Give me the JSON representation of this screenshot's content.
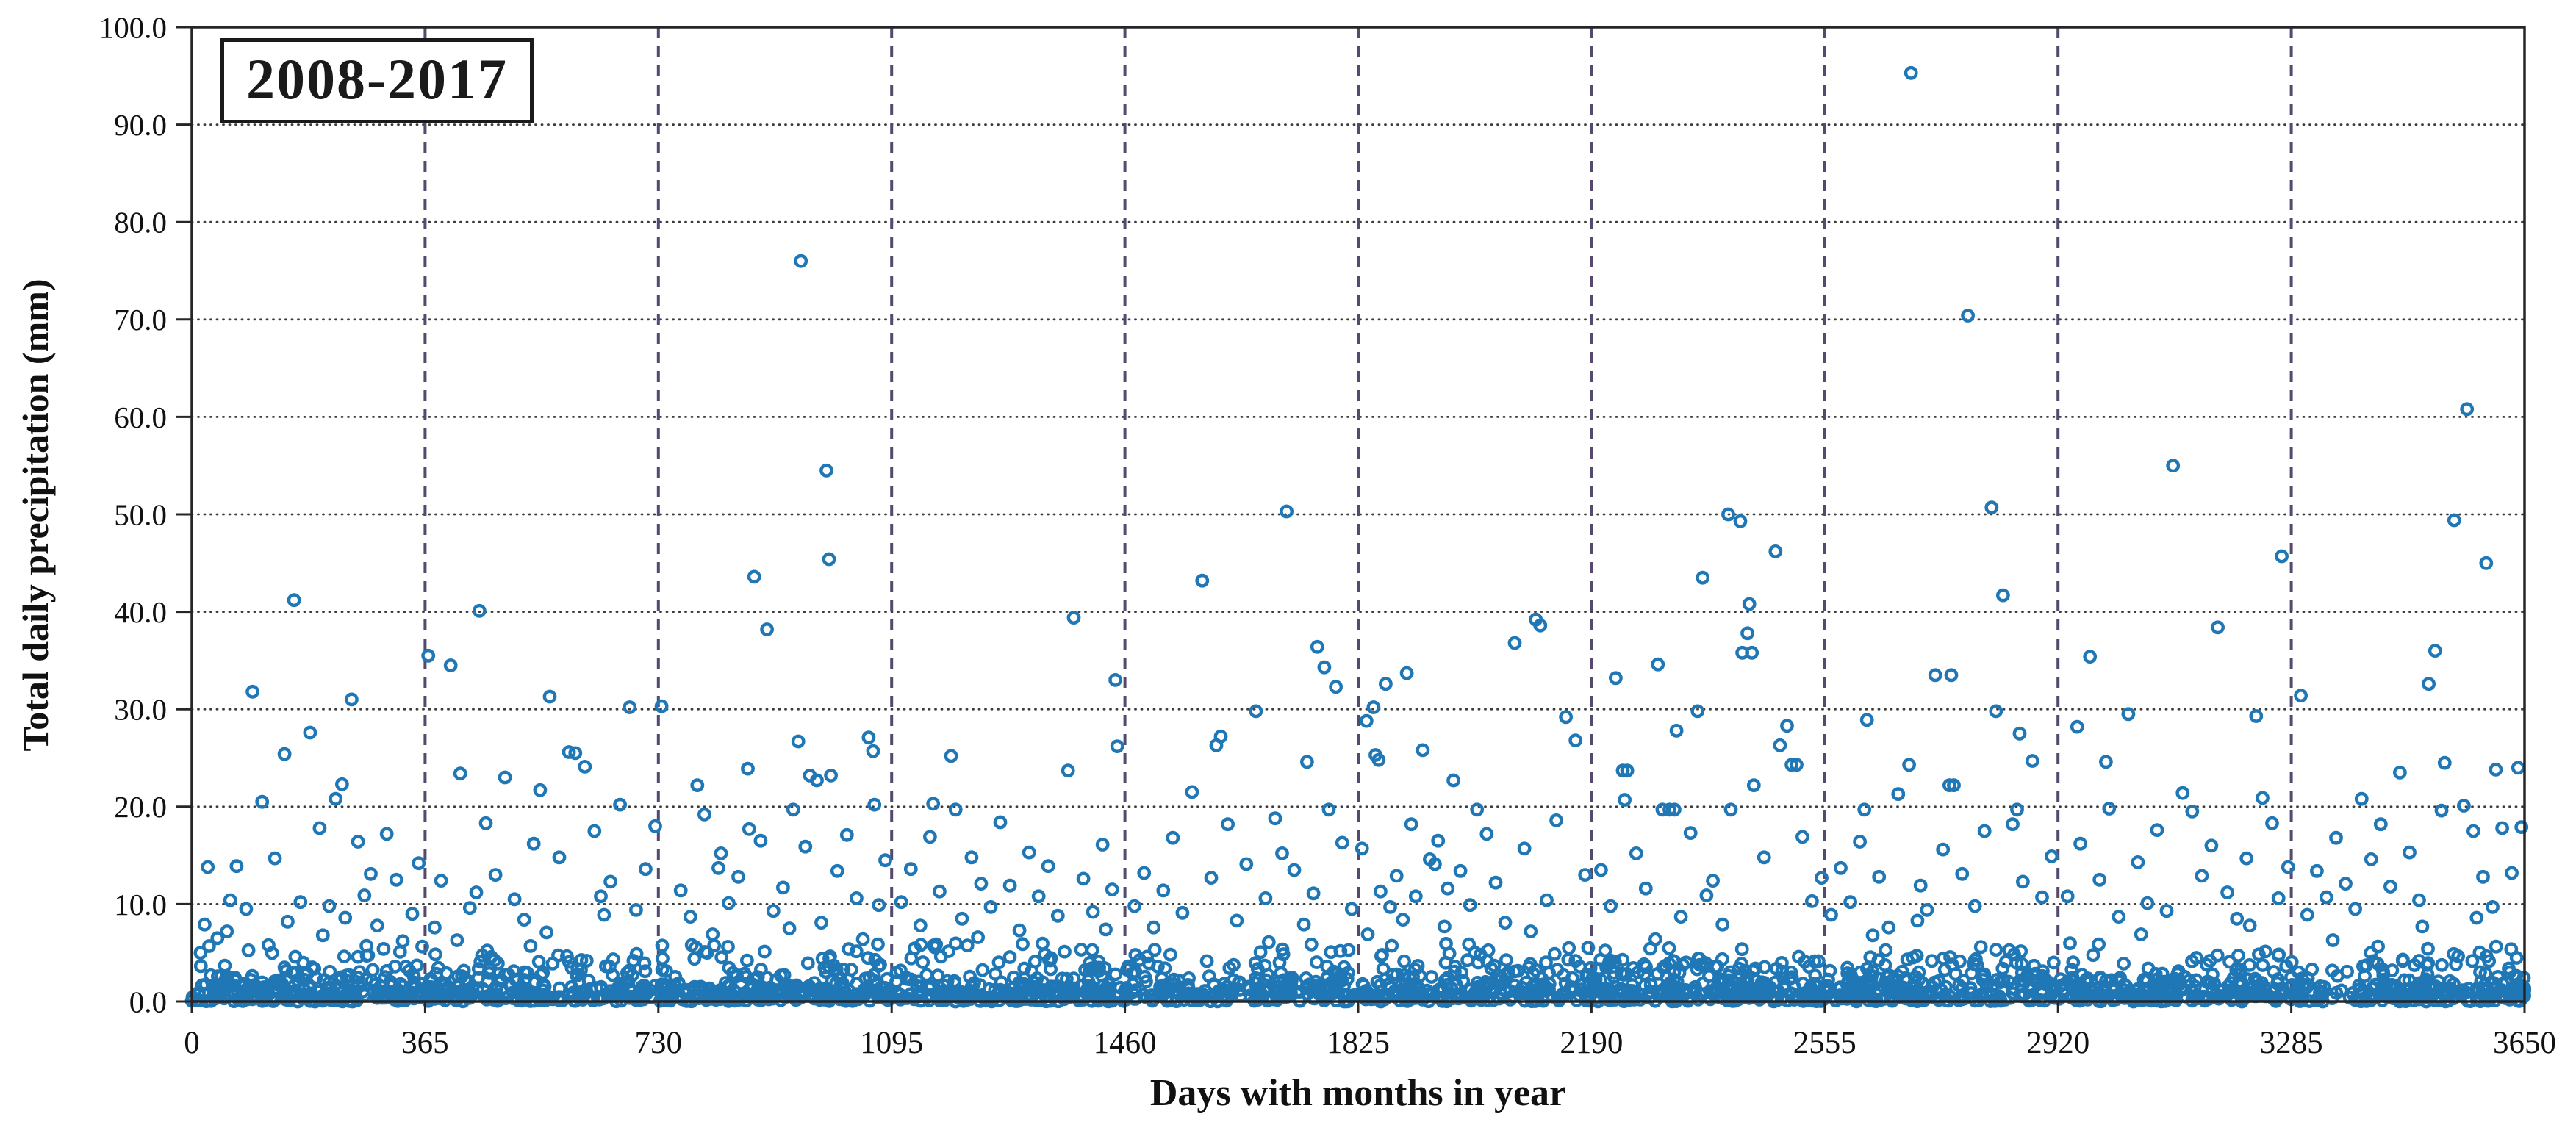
{
  "chart": {
    "period_label": "2008-2017",
    "xlabel": "Days with months in year",
    "ylabel": "Total daily precipitation (mm)"
  },
  "chart_data": {
    "type": "scatter",
    "title": "2008-2017",
    "xlabel": "Days with months in year",
    "ylabel": "Total daily precipitation (mm)",
    "xlim": [
      0,
      3650
    ],
    "ylim": [
      0,
      100
    ],
    "xticks": [
      0,
      365,
      730,
      1095,
      1460,
      1825,
      2190,
      2555,
      2920,
      3285,
      3650
    ],
    "yticks": [
      0,
      10,
      20,
      30,
      40,
      50,
      60,
      70,
      80,
      90,
      100
    ],
    "ytick_decimals": 1,
    "grid": {
      "horizontal_style": "dotted",
      "horizontal_color": "#3c3c3c",
      "vertical_style": "dashed",
      "vertical_color": "#55496e"
    },
    "legend": "none",
    "marker": {
      "shape": "open-circle",
      "color": "#2077b5",
      "radius_px": 7.2,
      "stroke_px": 4.4
    },
    "points": [
      [
        20,
        7.9
      ],
      [
        25,
        13.8
      ],
      [
        40,
        6.5
      ],
      [
        55,
        7.2
      ],
      [
        60,
        10.4
      ],
      [
        70,
        13.9
      ],
      [
        85,
        9.5
      ],
      [
        95,
        31.8
      ],
      [
        110,
        20.5
      ],
      [
        120,
        5.8
      ],
      [
        130,
        14.7
      ],
      [
        145,
        25.4
      ],
      [
        150,
        8.2
      ],
      [
        160,
        41.2
      ],
      [
        170,
        10.2
      ],
      [
        185,
        27.6
      ],
      [
        200,
        17.8
      ],
      [
        205,
        6.8
      ],
      [
        215,
        9.8
      ],
      [
        225,
        20.8
      ],
      [
        235,
        22.3
      ],
      [
        240,
        8.6
      ],
      [
        250,
        31.0
      ],
      [
        260,
        16.4
      ],
      [
        270,
        10.9
      ],
      [
        280,
        13.1
      ],
      [
        290,
        7.8
      ],
      [
        300,
        5.4
      ],
      [
        305,
        17.2
      ],
      [
        320,
        12.5
      ],
      [
        330,
        6.2
      ],
      [
        345,
        9.0
      ],
      [
        355,
        14.2
      ],
      [
        370,
        35.5
      ],
      [
        380,
        7.6
      ],
      [
        390,
        12.4
      ],
      [
        405,
        34.5
      ],
      [
        415,
        6.3
      ],
      [
        420,
        23.4
      ],
      [
        435,
        9.6
      ],
      [
        445,
        11.2
      ],
      [
        450,
        40.1
      ],
      [
        460,
        18.3
      ],
      [
        475,
        13.0
      ],
      [
        490,
        23.0
      ],
      [
        505,
        10.5
      ],
      [
        520,
        8.4
      ],
      [
        530,
        5.7
      ],
      [
        535,
        16.2
      ],
      [
        545,
        21.7
      ],
      [
        555,
        7.1
      ],
      [
        560,
        31.3
      ],
      [
        575,
        14.8
      ],
      [
        590,
        25.6
      ],
      [
        600,
        25.5
      ],
      [
        615,
        24.1
      ],
      [
        630,
        17.5
      ],
      [
        640,
        10.8
      ],
      [
        645,
        8.9
      ],
      [
        655,
        12.3
      ],
      [
        670,
        20.2
      ],
      [
        685,
        30.2
      ],
      [
        695,
        9.4
      ],
      [
        710,
        13.6
      ],
      [
        725,
        18.0
      ],
      [
        735,
        30.3
      ],
      [
        765,
        11.4
      ],
      [
        780,
        8.7
      ],
      [
        791,
        22.2
      ],
      [
        802,
        19.2
      ],
      [
        815,
        6.9
      ],
      [
        824,
        13.7
      ],
      [
        828,
        15.2
      ],
      [
        840,
        10.1
      ],
      [
        855,
        12.8
      ],
      [
        870,
        23.9
      ],
      [
        872,
        17.7
      ],
      [
        880,
        43.6
      ],
      [
        890,
        16.5
      ],
      [
        900,
        38.2
      ],
      [
        910,
        9.3
      ],
      [
        925,
        11.7
      ],
      [
        935,
        7.5
      ],
      [
        941,
        19.7
      ],
      [
        949,
        26.7
      ],
      [
        953,
        76.0
      ],
      [
        960,
        15.9
      ],
      [
        967,
        23.2
      ],
      [
        978,
        22.7
      ],
      [
        985,
        8.1
      ],
      [
        993,
        54.5
      ],
      [
        997,
        45.4
      ],
      [
        1000,
        23.2
      ],
      [
        1010,
        13.4
      ],
      [
        1025,
        17.1
      ],
      [
        1040,
        10.6
      ],
      [
        1050,
        6.4
      ],
      [
        1059,
        27.1
      ],
      [
        1066,
        25.7
      ],
      [
        1068,
        20.2
      ],
      [
        1075,
        9.9
      ],
      [
        1085,
        14.5
      ],
      [
        1110,
        10.2
      ],
      [
        1125,
        13.6
      ],
      [
        1140,
        7.8
      ],
      [
        1155,
        16.9
      ],
      [
        1160,
        20.3
      ],
      [
        1170,
        11.3
      ],
      [
        1188,
        25.2
      ],
      [
        1195,
        19.7
      ],
      [
        1205,
        8.5
      ],
      [
        1220,
        14.8
      ],
      [
        1230,
        6.6
      ],
      [
        1235,
        12.1
      ],
      [
        1250,
        9.7
      ],
      [
        1265,
        18.4
      ],
      [
        1280,
        11.9
      ],
      [
        1295,
        7.3
      ],
      [
        1300,
        5.9
      ],
      [
        1310,
        15.3
      ],
      [
        1325,
        10.8
      ],
      [
        1340,
        13.9
      ],
      [
        1355,
        8.8
      ],
      [
        1371,
        23.7
      ],
      [
        1380,
        39.4
      ],
      [
        1395,
        12.6
      ],
      [
        1410,
        9.2
      ],
      [
        1425,
        16.1
      ],
      [
        1430,
        7.4
      ],
      [
        1440,
        11.5
      ],
      [
        1445,
        33.0
      ],
      [
        1448,
        26.2
      ],
      [
        1475,
        9.8
      ],
      [
        1490,
        13.2
      ],
      [
        1505,
        7.6
      ],
      [
        1520,
        11.4
      ],
      [
        1535,
        16.8
      ],
      [
        1550,
        9.1
      ],
      [
        1565,
        21.5
      ],
      [
        1581,
        43.2
      ],
      [
        1595,
        12.7
      ],
      [
        1603,
        26.3
      ],
      [
        1610,
        27.2
      ],
      [
        1621,
        18.2
      ],
      [
        1635,
        8.3
      ],
      [
        1650,
        14.1
      ],
      [
        1665,
        29.8
      ],
      [
        1680,
        10.6
      ],
      [
        1685,
        6.1
      ],
      [
        1695,
        18.8
      ],
      [
        1706,
        15.2
      ],
      [
        1713,
        50.3
      ],
      [
        1725,
        13.5
      ],
      [
        1740,
        7.9
      ],
      [
        1745,
        24.6
      ],
      [
        1755,
        11.1
      ],
      [
        1761,
        36.4
      ],
      [
        1772,
        34.3
      ],
      [
        1779,
        19.7
      ],
      [
        1790,
        32.3
      ],
      [
        1800,
        16.3
      ],
      [
        1815,
        9.5
      ],
      [
        1831,
        15.7
      ],
      [
        1838,
        28.8
      ],
      [
        1840,
        6.9
      ],
      [
        1849,
        30.2
      ],
      [
        1852,
        25.3
      ],
      [
        1857,
        24.8
      ],
      [
        1860,
        11.3
      ],
      [
        1868,
        32.6
      ],
      [
        1875,
        9.7
      ],
      [
        1885,
        12.9
      ],
      [
        1895,
        8.4
      ],
      [
        1901,
        33.7
      ],
      [
        1908,
        18.2
      ],
      [
        1915,
        10.8
      ],
      [
        1926,
        25.8
      ],
      [
        1937,
        14.6
      ],
      [
        1945,
        14.1
      ],
      [
        1950,
        16.5
      ],
      [
        1960,
        7.7
      ],
      [
        1965,
        11.6
      ],
      [
        1974,
        22.7
      ],
      [
        1985,
        13.4
      ],
      [
        2000,
        9.9
      ],
      [
        2011,
        19.7
      ],
      [
        2026,
        17.2
      ],
      [
        2040,
        12.2
      ],
      [
        2055,
        8.1
      ],
      [
        2070,
        36.8
      ],
      [
        2085,
        15.7
      ],
      [
        2095,
        7.2
      ],
      [
        2103,
        39.2
      ],
      [
        2110,
        38.6
      ],
      [
        2120,
        10.4
      ],
      [
        2135,
        18.6
      ],
      [
        2150,
        29.2
      ],
      [
        2165,
        26.8
      ],
      [
        2180,
        13.0
      ],
      [
        2205,
        13.5
      ],
      [
        2220,
        9.8
      ],
      [
        2228,
        33.2
      ],
      [
        2239,
        23.7
      ],
      [
        2242,
        20.7
      ],
      [
        2246,
        23.7
      ],
      [
        2260,
        15.2
      ],
      [
        2275,
        11.6
      ],
      [
        2290,
        6.4
      ],
      [
        2294,
        34.6
      ],
      [
        2301,
        19.7
      ],
      [
        2312,
        19.7
      ],
      [
        2320,
        19.7
      ],
      [
        2323,
        27.8
      ],
      [
        2330,
        8.7
      ],
      [
        2345,
        17.3
      ],
      [
        2356,
        29.8
      ],
      [
        2364,
        43.5
      ],
      [
        2370,
        10.9
      ],
      [
        2380,
        12.4
      ],
      [
        2395,
        7.9
      ],
      [
        2404,
        50.0
      ],
      [
        2408,
        19.7
      ],
      [
        2423,
        49.3
      ],
      [
        2426,
        35.8
      ],
      [
        2434,
        37.8
      ],
      [
        2437,
        40.8
      ],
      [
        2441,
        35.8
      ],
      [
        2444,
        22.2
      ],
      [
        2460,
        14.8
      ],
      [
        2478,
        46.2
      ],
      [
        2485,
        26.3
      ],
      [
        2496,
        28.3
      ],
      [
        2503,
        24.3
      ],
      [
        2511,
        24.3
      ],
      [
        2520,
        16.9
      ],
      [
        2535,
        10.3
      ],
      [
        2550,
        12.7
      ],
      [
        2565,
        8.9
      ],
      [
        2580,
        13.7
      ],
      [
        2595,
        10.2
      ],
      [
        2610,
        16.4
      ],
      [
        2617,
        19.7
      ],
      [
        2621,
        28.9
      ],
      [
        2630,
        6.8
      ],
      [
        2640,
        12.8
      ],
      [
        2655,
        7.6
      ],
      [
        2670,
        21.3
      ],
      [
        2687,
        24.3
      ],
      [
        2690,
        95.3
      ],
      [
        2700,
        8.3
      ],
      [
        2705,
        11.9
      ],
      [
        2715,
        9.4
      ],
      [
        2728,
        33.5
      ],
      [
        2740,
        15.6
      ],
      [
        2750,
        22.2
      ],
      [
        2753,
        33.5
      ],
      [
        2757,
        22.2
      ],
      [
        2770,
        13.1
      ],
      [
        2779,
        70.4
      ],
      [
        2790,
        9.8
      ],
      [
        2805,
        17.5
      ],
      [
        2816,
        50.7
      ],
      [
        2823,
        29.8
      ],
      [
        2834,
        41.7
      ],
      [
        2849,
        18.2
      ],
      [
        2856,
        19.7
      ],
      [
        2860,
        27.5
      ],
      [
        2865,
        12.3
      ],
      [
        2880,
        24.7
      ],
      [
        2895,
        10.7
      ],
      [
        2910,
        14.9
      ],
      [
        2935,
        10.8
      ],
      [
        2950,
        28.2
      ],
      [
        2955,
        16.2
      ],
      [
        2970,
        35.4
      ],
      [
        2985,
        12.5
      ],
      [
        2995,
        24.6
      ],
      [
        3000,
        19.8
      ],
      [
        3015,
        8.7
      ],
      [
        3030,
        29.5
      ],
      [
        3045,
        14.3
      ],
      [
        3050,
        6.9
      ],
      [
        3060,
        10.1
      ],
      [
        3075,
        17.6
      ],
      [
        3090,
        9.3
      ],
      [
        3100,
        55.0
      ],
      [
        3115,
        21.4
      ],
      [
        3130,
        19.5
      ],
      [
        3145,
        12.9
      ],
      [
        3160,
        16.0
      ],
      [
        3170,
        38.4
      ],
      [
        3185,
        11.2
      ],
      [
        3200,
        8.5
      ],
      [
        3215,
        14.7
      ],
      [
        3220,
        7.8
      ],
      [
        3230,
        29.3
      ],
      [
        3240,
        20.9
      ],
      [
        3255,
        18.3
      ],
      [
        3265,
        10.6
      ],
      [
        3270,
        45.7
      ],
      [
        3280,
        13.8
      ],
      [
        3300,
        31.4
      ],
      [
        3310,
        8.9
      ],
      [
        3325,
        13.4
      ],
      [
        3340,
        10.7
      ],
      [
        3350,
        6.3
      ],
      [
        3355,
        16.8
      ],
      [
        3370,
        12.1
      ],
      [
        3385,
        9.5
      ],
      [
        3395,
        20.8
      ],
      [
        3410,
        14.6
      ],
      [
        3425,
        18.2
      ],
      [
        3440,
        11.8
      ],
      [
        3455,
        23.5
      ],
      [
        3470,
        15.3
      ],
      [
        3485,
        10.4
      ],
      [
        3490,
        7.7
      ],
      [
        3500,
        32.6
      ],
      [
        3510,
        36.0
      ],
      [
        3520,
        19.6
      ],
      [
        3525,
        24.5
      ],
      [
        3540,
        49.4
      ],
      [
        3555,
        20.1
      ],
      [
        3560,
        60.8
      ],
      [
        3570,
        17.5
      ],
      [
        3575,
        8.6
      ],
      [
        3585,
        12.8
      ],
      [
        3590,
        45.0
      ],
      [
        3600,
        9.7
      ],
      [
        3605,
        23.8
      ],
      [
        3615,
        17.8
      ],
      [
        3630,
        13.2
      ],
      [
        3640,
        24.0
      ],
      [
        3645,
        17.9
      ]
    ],
    "dense_band": {
      "description": "remaining daily totals below ~6 mm forming the near-solid band along zero",
      "count": 2300,
      "max_mm": 6,
      "decay_mm": 1.6,
      "seed": 11
    }
  }
}
